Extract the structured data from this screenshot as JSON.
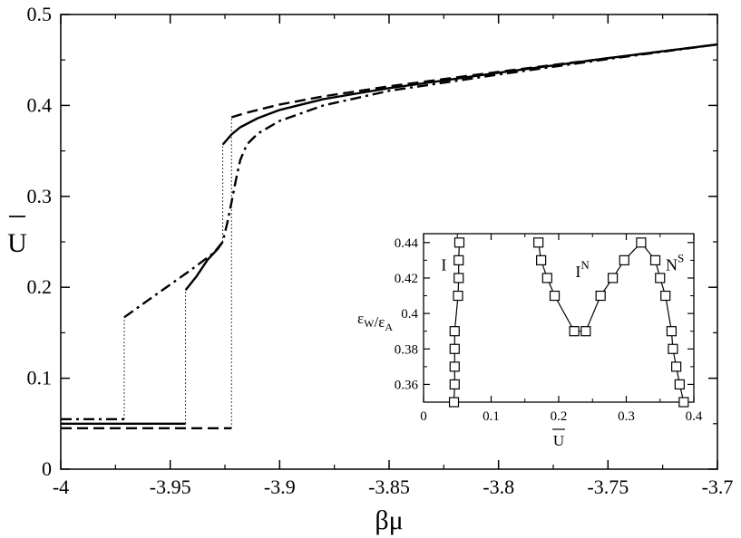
{
  "chart_data": [
    {
      "type": "line",
      "xlabel": "βμ",
      "ylabel": "U",
      "ylabel_overbar": true,
      "xlim": [
        -4.0,
        -3.7
      ],
      "ylim": [
        0.0,
        0.5
      ],
      "xticks": [
        -4,
        -3.95,
        -3.9,
        -3.85,
        -3.8,
        -3.75,
        -3.7
      ],
      "xtick_labels": [
        "-4",
        "-3.95",
        "-3.9",
        "-3.85",
        "-3.8",
        "-3.75",
        "-3.7"
      ],
      "yticks": [
        0,
        0.1,
        0.2,
        0.3,
        0.4,
        0.5
      ],
      "ytick_labels": [
        "0",
        "0.1",
        "0.2",
        "0.3",
        "0.4",
        "0.5"
      ],
      "grid": false,
      "series": [
        {
          "style": "solid",
          "segments": [
            [
              [
                -4.0,
                0.05
              ],
              [
                -3.943,
                0.05
              ]
            ],
            [
              [
                -3.943,
                0.197
              ],
              [
                -3.938,
                0.212
              ],
              [
                -3.933,
                0.23
              ],
              [
                -3.928,
                0.243
              ],
              [
                -3.926,
                0.25
              ]
            ],
            [
              [
                -3.926,
                0.357
              ],
              [
                -3.922,
                0.368
              ],
              [
                -3.918,
                0.376
              ],
              [
                -3.91,
                0.386
              ],
              [
                -3.9,
                0.395
              ],
              [
                -3.88,
                0.407
              ],
              [
                -3.85,
                0.419
              ],
              [
                -3.8,
                0.436
              ],
              [
                -3.75,
                0.452
              ],
              [
                -3.7,
                0.467
              ]
            ]
          ],
          "transitions": [
            {
              "x": -3.943,
              "from": 0.05,
              "to": 0.197
            },
            {
              "x": -3.926,
              "from": 0.25,
              "to": 0.357
            }
          ]
        },
        {
          "style": "dashed",
          "segments": [
            [
              [
                -4.0,
                0.045
              ],
              [
                -3.922,
                0.045
              ]
            ],
            [
              [
                -3.922,
                0.387
              ],
              [
                -3.915,
                0.392
              ],
              [
                -3.9,
                0.401
              ],
              [
                -3.88,
                0.41
              ],
              [
                -3.85,
                0.421
              ],
              [
                -3.8,
                0.437
              ],
              [
                -3.75,
                0.452
              ],
              [
                -3.7,
                0.467
              ]
            ]
          ],
          "transitions": [
            {
              "x": -3.922,
              "from": 0.045,
              "to": 0.387
            }
          ]
        },
        {
          "style": "dashdot",
          "segments": [
            [
              [
                -4.0,
                0.055
              ],
              [
                -3.971,
                0.055
              ]
            ],
            [
              [
                -3.971,
                0.167
              ],
              [
                -3.96,
                0.186
              ],
              [
                -3.95,
                0.203
              ],
              [
                -3.94,
                0.22
              ],
              [
                -3.93,
                0.238
              ],
              [
                -3.926,
                0.25
              ],
              [
                -3.924,
                0.27
              ],
              [
                -3.922,
                0.293
              ],
              [
                -3.92,
                0.318
              ],
              [
                -3.918,
                0.34
              ],
              [
                -3.915,
                0.357
              ],
              [
                -3.91,
                0.369
              ],
              [
                -3.9,
                0.383
              ],
              [
                -3.88,
                0.4
              ],
              [
                -3.85,
                0.416
              ],
              [
                -3.8,
                0.434
              ],
              [
                -3.75,
                0.451
              ],
              [
                -3.7,
                0.467
              ]
            ]
          ],
          "transitions": [
            {
              "x": -3.971,
              "from": 0.055,
              "to": 0.167
            }
          ]
        }
      ]
    },
    {
      "type": "scatter",
      "inset": true,
      "xlabel": "U",
      "xlabel_overbar": true,
      "ylabel": "εW/εA",
      "xlim": [
        0.0,
        0.4
      ],
      "ylim": [
        0.35,
        0.445
      ],
      "xticks": [
        0,
        0.1,
        0.2,
        0.3,
        0.4
      ],
      "xtick_labels": [
        "0",
        "0.1",
        "0.2",
        "0.3",
        "0.4"
      ],
      "yticks": [
        0.36,
        0.38,
        0.4,
        0.42,
        0.44
      ],
      "ytick_labels": [
        "0.36",
        "0.38",
        "0.4",
        "0.42",
        "0.44"
      ],
      "marker": "open-square",
      "series": [
        {
          "points": [
            [
              0.045,
              0.35
            ],
            [
              0.046,
              0.36
            ],
            [
              0.046,
              0.37
            ],
            [
              0.046,
              0.38
            ],
            [
              0.046,
              0.39
            ],
            [
              0.051,
              0.41
            ],
            [
              0.052,
              0.42
            ],
            [
              0.052,
              0.43
            ],
            [
              0.053,
              0.44
            ]
          ]
        },
        {
          "points": [
            [
              0.17,
              0.44
            ],
            [
              0.174,
              0.43
            ],
            [
              0.183,
              0.42
            ],
            [
              0.194,
              0.41
            ],
            [
              0.223,
              0.39
            ],
            [
              0.24,
              0.39
            ],
            [
              0.262,
              0.41
            ],
            [
              0.28,
              0.42
            ],
            [
              0.297,
              0.43
            ],
            [
              0.322,
              0.44
            ],
            [
              0.343,
              0.43
            ],
            [
              0.35,
              0.42
            ],
            [
              0.358,
              0.41
            ],
            [
              0.367,
              0.39
            ],
            [
              0.369,
              0.38
            ],
            [
              0.374,
              0.37
            ],
            [
              0.379,
              0.36
            ],
            [
              0.385,
              0.35
            ]
          ]
        }
      ],
      "labels": [
        {
          "text": "I",
          "sup": "",
          "x": 0.03,
          "y": 0.428
        },
        {
          "text": "I",
          "sup": "N",
          "x": 0.235,
          "y": 0.424
        },
        {
          "text": "N",
          "sup": "S",
          "x": 0.372,
          "y": 0.428
        }
      ]
    }
  ]
}
